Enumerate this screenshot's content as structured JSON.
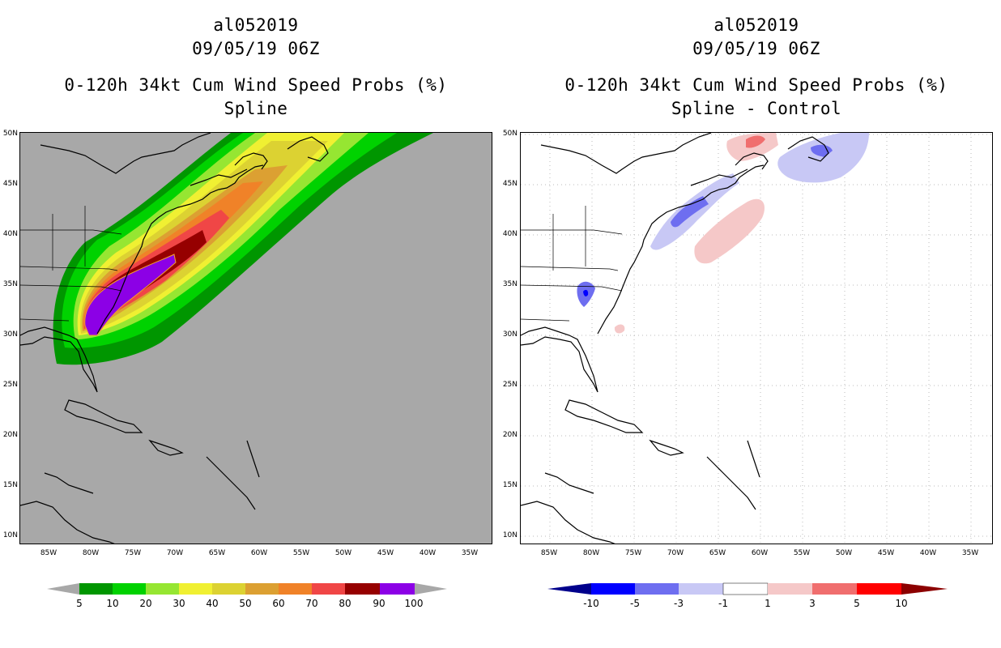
{
  "left_panel": {
    "storm_id": "al052019",
    "datetime": "09/05/19 06Z",
    "product": "0-120h 34kt Cum Wind Speed Probs (%)",
    "subtitle": "Spline",
    "background_color": "#a8a8a8"
  },
  "right_panel": {
    "storm_id": "al052019",
    "datetime": "09/05/19 06Z",
    "product": "0-120h 34kt Cum Wind Speed Probs (%)",
    "subtitle": "Spline - Control",
    "background_color": "#ffffff"
  },
  "axes": {
    "lat_labels": [
      "50N",
      "45N",
      "40N",
      "35N",
      "30N",
      "25N",
      "20N",
      "15N",
      "10N"
    ],
    "lon_labels": [
      "85W",
      "80W",
      "75W",
      "70W",
      "65W",
      "60W",
      "55W",
      "50W",
      "45W",
      "40W",
      "35W"
    ]
  },
  "colorbar_left": {
    "labels": [
      "5",
      "10",
      "20",
      "30",
      "40",
      "50",
      "60",
      "70",
      "80",
      "90",
      "100"
    ],
    "colors": [
      "#a8a8a8",
      "#009600",
      "#00d200",
      "#96e632",
      "#f0f032",
      "#dcd232",
      "#dca032",
      "#f08228",
      "#f04646",
      "#960000",
      "#8c00e6",
      "#a8a8a8"
    ]
  },
  "colorbar_right": {
    "labels": [
      "-10",
      "-5",
      "-3",
      "-1",
      "1",
      "3",
      "5",
      "10"
    ],
    "colors": [
      "#00008c",
      "#0000ff",
      "#6e6ef0",
      "#c8c8f5",
      "#ffffff",
      "#f5c8c8",
      "#f06e6e",
      "#ff0000",
      "#8c0000"
    ]
  }
}
